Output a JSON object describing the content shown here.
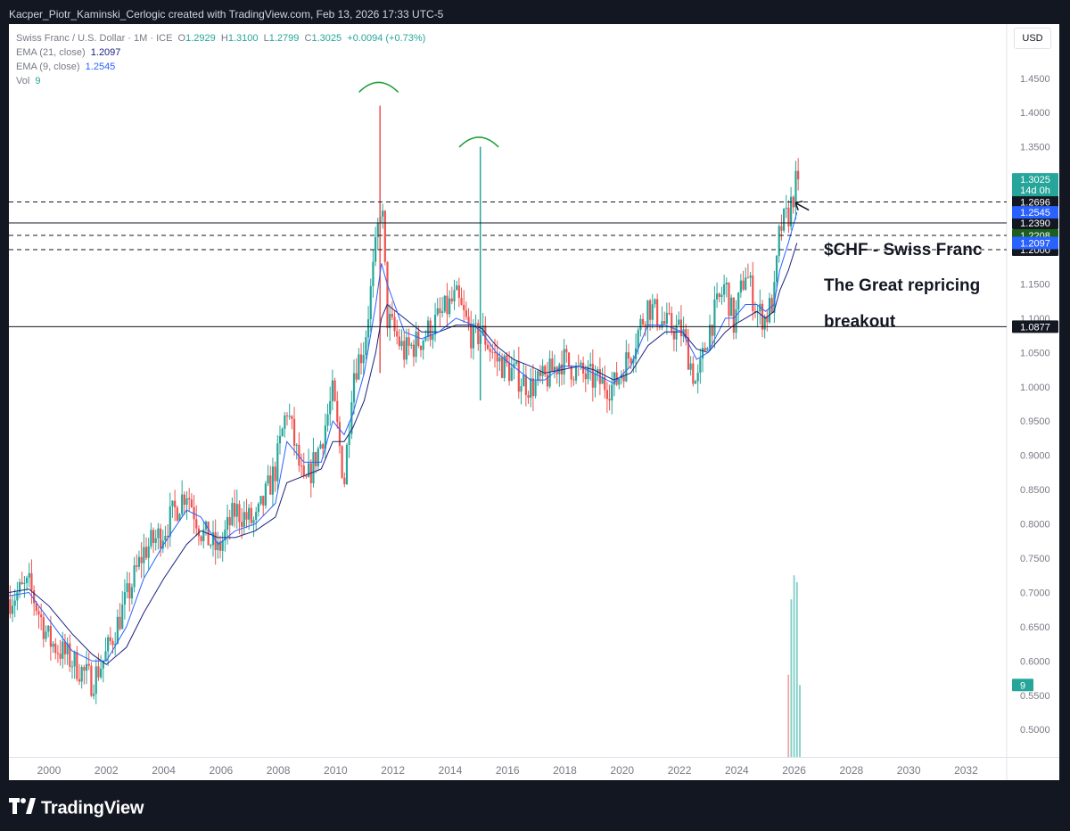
{
  "caption": "Kacper_Piotr_Kaminski_Cerlogic created with TradingView.com, Feb 13, 2026 17:33 UTC-5",
  "legend": {
    "symbol": "Swiss Franc / U.S. Dollar · 1M · ICE",
    "ohlc": {
      "o": "O",
      "o_val": "1.2929",
      "h": "H",
      "h_val": "1.3100",
      "l": "L",
      "l_val": "1.2799",
      "c": "C",
      "c_val": "1.3025"
    },
    "change": "+0.0094 (+0.73%)",
    "ema21_label": "EMA (21, close)",
    "ema21_value": "1.2097",
    "ema9_label": "EMA (9, close)",
    "ema9_value": "1.2545",
    "vol_label": "Vol",
    "vol_value": "9"
  },
  "currency_button": "USD",
  "brand": "TradingView",
  "colors": {
    "up": "#26a69a",
    "down": "#ef5350",
    "ema9": "#2962ff",
    "ema21": "#1a237e",
    "hline": "#131722",
    "arc": "#1e9e3a",
    "bg": "#ffffff",
    "frame": "#131722"
  },
  "chart_data": {
    "type": "candlestick",
    "title": "Swiss Franc / U.S. Dollar · 1M · ICE",
    "ylim": [
      0.46,
      1.49
    ],
    "xlim": [
      1998.6,
      2033.2
    ],
    "y_ticks": [
      "0.5000",
      "0.5500",
      "0.6000",
      "0.6500",
      "0.7000",
      "0.7500",
      "0.8000",
      "0.8500",
      "0.9000",
      "0.9500",
      "1.0000",
      "1.0500",
      "1.1000",
      "1.1500",
      "1.2000",
      "1.2500",
      "1.3000",
      "1.3500",
      "1.4000",
      "1.4500"
    ],
    "x_ticks": [
      "2000",
      "2002",
      "2004",
      "2006",
      "2008",
      "2010",
      "2012",
      "2014",
      "2016",
      "2018",
      "2020",
      "2022",
      "2024",
      "2026",
      "2028",
      "2030",
      "2032"
    ],
    "price_path": [
      [
        1998.6,
        0.69
      ],
      [
        1999.3,
        0.71
      ],
      [
        2000.0,
        0.63
      ],
      [
        2000.8,
        0.6
      ],
      [
        2001.5,
        0.57
      ],
      [
        2002.0,
        0.61
      ],
      [
        2002.7,
        0.69
      ],
      [
        2003.3,
        0.76
      ],
      [
        2004.0,
        0.79
      ],
      [
        2004.8,
        0.85
      ],
      [
        2005.3,
        0.79
      ],
      [
        2005.9,
        0.76
      ],
      [
        2006.5,
        0.82
      ],
      [
        2007.2,
        0.8
      ],
      [
        2007.9,
        0.88
      ],
      [
        2008.3,
        0.97
      ],
      [
        2008.9,
        0.85
      ],
      [
        2009.5,
        0.92
      ],
      [
        2009.9,
        0.99
      ],
      [
        2010.3,
        0.86
      ],
      [
        2010.6,
        1.02
      ],
      [
        2011.0,
        1.06
      ],
      [
        2011.4,
        1.2
      ],
      [
        2011.6,
        1.28
      ],
      [
        2011.8,
        1.1
      ],
      [
        2012.4,
        1.05
      ],
      [
        2013.0,
        1.07
      ],
      [
        2013.6,
        1.1
      ],
      [
        2014.2,
        1.13
      ],
      [
        2014.8,
        1.07
      ],
      [
        2015.1,
        1.08
      ],
      [
        2015.6,
        1.04
      ],
      [
        2016.2,
        1.02
      ],
      [
        2016.8,
        1.0
      ],
      [
        2017.3,
        1.01
      ],
      [
        2017.9,
        1.04
      ],
      [
        2018.5,
        1.02
      ],
      [
        2019.0,
        1.01
      ],
      [
        2019.7,
        1.0
      ],
      [
        2020.3,
        1.05
      ],
      [
        2020.9,
        1.12
      ],
      [
        2021.5,
        1.09
      ],
      [
        2022.1,
        1.08
      ],
      [
        2022.6,
        1.0
      ],
      [
        2023.0,
        1.08
      ],
      [
        2023.6,
        1.15
      ],
      [
        2023.9,
        1.09
      ],
      [
        2024.3,
        1.17
      ],
      [
        2024.7,
        1.11
      ],
      [
        2025.0,
        1.1
      ],
      [
        2025.3,
        1.13
      ],
      [
        2025.5,
        1.23
      ],
      [
        2025.8,
        1.25
      ],
      [
        2026.1,
        1.3025
      ]
    ],
    "ema9": [
      [
        1998.6,
        0.695
      ],
      [
        1999.3,
        0.7
      ],
      [
        2000.0,
        0.66
      ],
      [
        2000.8,
        0.615
      ],
      [
        2001.5,
        0.6
      ],
      [
        2002.0,
        0.6
      ],
      [
        2002.7,
        0.65
      ],
      [
        2003.3,
        0.72
      ],
      [
        2004.0,
        0.77
      ],
      [
        2004.8,
        0.82
      ],
      [
        2005.3,
        0.81
      ],
      [
        2005.9,
        0.77
      ],
      [
        2006.5,
        0.79
      ],
      [
        2007.2,
        0.8
      ],
      [
        2007.9,
        0.83
      ],
      [
        2008.3,
        0.92
      ],
      [
        2008.9,
        0.89
      ],
      [
        2009.5,
        0.89
      ],
      [
        2009.9,
        0.95
      ],
      [
        2010.3,
        0.93
      ],
      [
        2010.6,
        0.96
      ],
      [
        2011.0,
        1.02
      ],
      [
        2011.4,
        1.12
      ],
      [
        2011.6,
        1.18
      ],
      [
        2011.8,
        1.15
      ],
      [
        2012.4,
        1.08
      ],
      [
        2013.0,
        1.07
      ],
      [
        2013.6,
        1.08
      ],
      [
        2014.2,
        1.1
      ],
      [
        2014.8,
        1.09
      ],
      [
        2015.1,
        1.08
      ],
      [
        2015.6,
        1.05
      ],
      [
        2016.2,
        1.03
      ],
      [
        2016.8,
        1.01
      ],
      [
        2017.3,
        1.01
      ],
      [
        2017.9,
        1.03
      ],
      [
        2018.5,
        1.03
      ],
      [
        2019.0,
        1.02
      ],
      [
        2019.7,
        1.005
      ],
      [
        2020.3,
        1.03
      ],
      [
        2020.9,
        1.09
      ],
      [
        2021.5,
        1.09
      ],
      [
        2022.1,
        1.08
      ],
      [
        2022.6,
        1.04
      ],
      [
        2023.0,
        1.05
      ],
      [
        2023.6,
        1.1
      ],
      [
        2023.9,
        1.1
      ],
      [
        2024.3,
        1.12
      ],
      [
        2024.7,
        1.12
      ],
      [
        2025.0,
        1.11
      ],
      [
        2025.3,
        1.12
      ],
      [
        2025.5,
        1.17
      ],
      [
        2025.8,
        1.21
      ],
      [
        2026.1,
        1.2545
      ]
    ],
    "ema21": [
      [
        1998.6,
        0.7
      ],
      [
        1999.3,
        0.705
      ],
      [
        2000.0,
        0.68
      ],
      [
        2000.8,
        0.64
      ],
      [
        2001.5,
        0.61
      ],
      [
        2002.0,
        0.595
      ],
      [
        2002.7,
        0.62
      ],
      [
        2003.3,
        0.67
      ],
      [
        2004.0,
        0.72
      ],
      [
        2004.8,
        0.77
      ],
      [
        2005.3,
        0.79
      ],
      [
        2005.9,
        0.78
      ],
      [
        2006.5,
        0.78
      ],
      [
        2007.2,
        0.79
      ],
      [
        2007.9,
        0.81
      ],
      [
        2008.3,
        0.86
      ],
      [
        2008.9,
        0.87
      ],
      [
        2009.5,
        0.88
      ],
      [
        2009.9,
        0.92
      ],
      [
        2010.3,
        0.92
      ],
      [
        2010.6,
        0.94
      ],
      [
        2011.0,
        0.98
      ],
      [
        2011.4,
        1.05
      ],
      [
        2011.6,
        1.1
      ],
      [
        2011.8,
        1.12
      ],
      [
        2012.4,
        1.1
      ],
      [
        2013.0,
        1.08
      ],
      [
        2013.6,
        1.08
      ],
      [
        2014.2,
        1.09
      ],
      [
        2014.8,
        1.09
      ],
      [
        2015.1,
        1.085
      ],
      [
        2015.6,
        1.06
      ],
      [
        2016.2,
        1.04
      ],
      [
        2016.8,
        1.03
      ],
      [
        2017.3,
        1.02
      ],
      [
        2017.9,
        1.025
      ],
      [
        2018.5,
        1.03
      ],
      [
        2019.0,
        1.025
      ],
      [
        2019.7,
        1.01
      ],
      [
        2020.3,
        1.02
      ],
      [
        2020.9,
        1.06
      ],
      [
        2021.5,
        1.08
      ],
      [
        2022.1,
        1.08
      ],
      [
        2022.6,
        1.055
      ],
      [
        2023.0,
        1.05
      ],
      [
        2023.6,
        1.08
      ],
      [
        2023.9,
        1.09
      ],
      [
        2024.3,
        1.1
      ],
      [
        2024.7,
        1.11
      ],
      [
        2025.0,
        1.1
      ],
      [
        2025.3,
        1.11
      ],
      [
        2025.5,
        1.14
      ],
      [
        2025.8,
        1.17
      ],
      [
        2026.1,
        1.2097
      ]
    ],
    "spikes": [
      {
        "x": 2011.55,
        "high": 1.41,
        "low": 1.02,
        "color": "down"
      },
      {
        "x": 2015.05,
        "high": 1.35,
        "low": 0.98,
        "color": "up"
      }
    ],
    "volume": [
      {
        "x": 2025.8,
        "value": 0.58,
        "color": "down"
      },
      {
        "x": 2025.9,
        "value": 0.69,
        "color": "up"
      },
      {
        "x": 2026.0,
        "value": 0.725,
        "color": "up"
      },
      {
        "x": 2026.1,
        "value": 0.715,
        "color": "up"
      },
      {
        "x": 2026.2,
        "value": 0.565,
        "color": "up"
      }
    ],
    "horizontal_lines": [
      {
        "value": 1.2696,
        "style": "dashed",
        "label": "1.2696",
        "label_bg": "#131722"
      },
      {
        "value": 1.239,
        "style": "solid",
        "label": "1.2390",
        "label_bg": "#131722"
      },
      {
        "value": 1.2208,
        "style": "dashed",
        "label": "1.2208",
        "label_bg": "#1b5e20"
      },
      {
        "value": 1.2,
        "style": "dashed",
        "label": "1.2000",
        "label_bg": "#131722"
      },
      {
        "value": 1.0877,
        "style": "solid",
        "label": "1.0877",
        "label_bg": "#131722"
      }
    ],
    "price_labels": [
      {
        "value": 1.3025,
        "label": "1.3025",
        "sublabel": "14d 0h",
        "bg": "#26a69a"
      },
      {
        "value": 1.2545,
        "label": "1.2545",
        "bg": "#2962ff"
      },
      {
        "value": 1.2097,
        "label": "1.2097",
        "bg": "#2962ff"
      }
    ],
    "vol_badge": "9",
    "annotations": [
      {
        "text": "$CHF - Swiss Franc"
      },
      {
        "text": "The Great repricing"
      },
      {
        "text": "breakout"
      }
    ],
    "arcs": [
      {
        "x": 2011.5,
        "y": 1.44
      },
      {
        "x": 2015.0,
        "y": 1.36
      }
    ]
  }
}
